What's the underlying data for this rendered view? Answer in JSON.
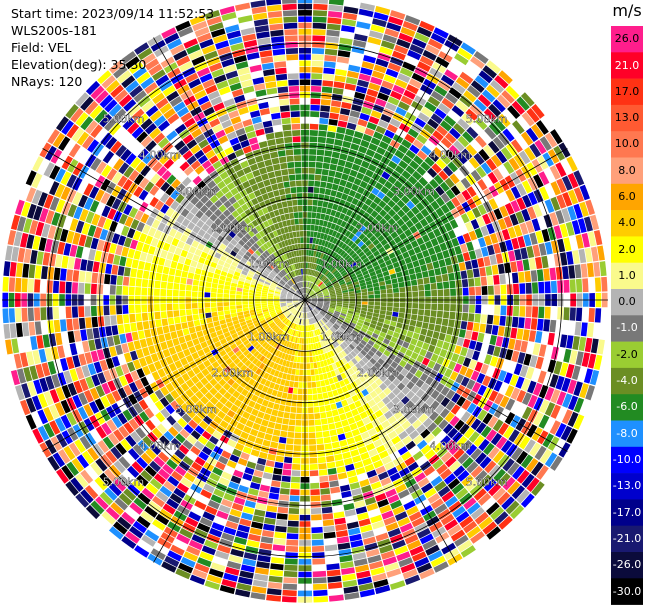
{
  "header": {
    "start_time": "Start time: 2023/09/14 11:52:53",
    "instrument": "WLS200s-181",
    "field": "Field: VEL",
    "elevation": "Elevation(deg): 35.30",
    "nrays": "NRays: 120"
  },
  "chart_data": {
    "type": "heatmap",
    "projection": "polar PPI (plan position indicator)",
    "field": "VEL",
    "units": "m/s",
    "elevation_deg": 35.3,
    "n_rays": 120,
    "range_ring_labels": [
      "1.00km",
      "2.00km",
      "3.00km",
      "4.00km",
      "5.00km"
    ],
    "range_rings_km": [
      1,
      2,
      3,
      4,
      5
    ],
    "max_range_km": 5.9,
    "grid": true,
    "colorbar": {
      "unit_label": "m/s",
      "levels": [
        {
          "label": "26.0",
          "color": "#ff1e8c"
        },
        {
          "label": "21.0",
          "color": "#ff0028"
        },
        {
          "label": "17.0",
          "color": "#ff3214"
        },
        {
          "label": "13.0",
          "color": "#ff5a32"
        },
        {
          "label": "10.0",
          "color": "#ff7850"
        },
        {
          "label": "8.0",
          "color": "#ffa07a"
        },
        {
          "label": "6.0",
          "color": "#ffa500"
        },
        {
          "label": "4.0",
          "color": "#ffcc00"
        },
        {
          "label": "2.0",
          "color": "#ffff00"
        },
        {
          "label": "1.0",
          "color": "#fafa8c"
        },
        {
          "label": "0.0",
          "color": "#b4b4b4"
        },
        {
          "label": "-1.0",
          "color": "#787878"
        },
        {
          "label": "-2.0",
          "color": "#9acd32"
        },
        {
          "label": "-4.0",
          "color": "#6b8e23"
        },
        {
          "label": "-6.0",
          "color": "#228b22"
        },
        {
          "label": "-8.0",
          "color": "#1e90ff"
        },
        {
          "label": "-10.0",
          "color": "#0000ff"
        },
        {
          "label": "-13.0",
          "color": "#0000cd"
        },
        {
          "label": "-17.0",
          "color": "#00008b"
        },
        {
          "label": "-21.0",
          "color": "#191970"
        },
        {
          "label": "-26.0",
          "color": "#0b0b3b"
        },
        {
          "label": "-30.0",
          "color": "#000000"
        }
      ]
    }
  }
}
